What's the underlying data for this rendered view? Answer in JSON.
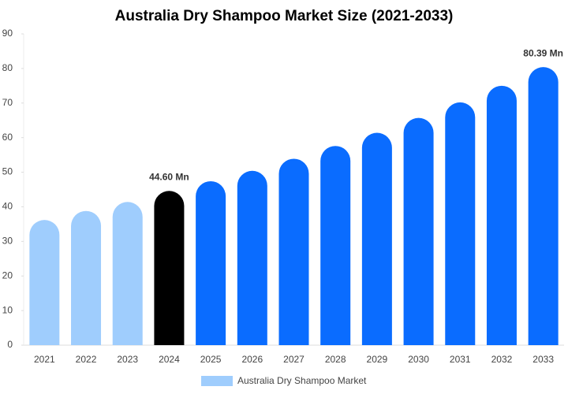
{
  "chart_data": {
    "type": "bar",
    "title": "Australia Dry Shampoo Market Size (2021-2033)",
    "categories": [
      "2021",
      "2022",
      "2023",
      "2024",
      "2025",
      "2026",
      "2027",
      "2028",
      "2029",
      "2030",
      "2031",
      "2032",
      "2033"
    ],
    "series": [
      {
        "name": "Australia Dry Shampoo Market",
        "color": "#9fcdfd",
        "values": [
          36.2,
          38.8,
          41.4,
          44.6,
          47.4,
          50.4,
          53.9,
          57.6,
          61.4,
          65.7,
          70.2,
          75.0,
          80.39
        ],
        "value_labels": [
          null,
          null,
          null,
          "44.60 Mn",
          null,
          null,
          null,
          null,
          null,
          null,
          null,
          null,
          "80.39 Mn"
        ],
        "colors": [
          "#9fcdfd",
          "#9fcdfd",
          "#9fcdfd",
          "#000000",
          "#0a6cff",
          "#0a6cff",
          "#0a6cff",
          "#0a6cff",
          "#0a6cff",
          "#0a6cff",
          "#0a6cff",
          "#0a6cff",
          "#0a6cff"
        ]
      }
    ],
    "ylim": [
      0,
      90
    ],
    "yticks": [
      0,
      10,
      20,
      30,
      40,
      50,
      60,
      70,
      80,
      90
    ],
    "grid": false
  }
}
